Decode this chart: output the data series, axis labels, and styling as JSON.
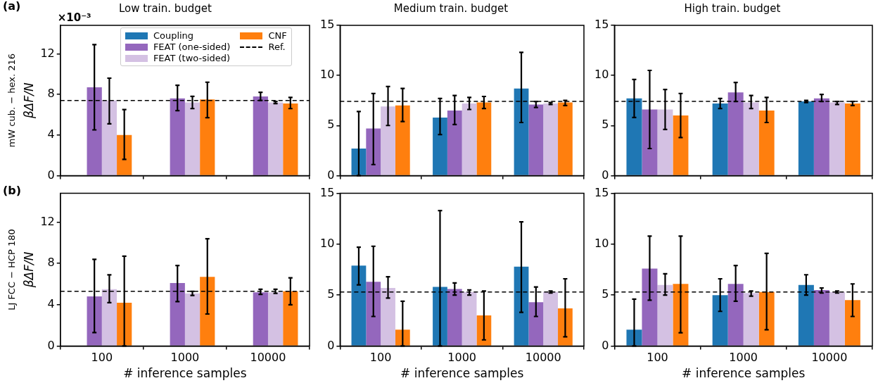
{
  "chart_data": [
    {
      "type": "bar",
      "title": "Low train. budget",
      "ylabel": "βΔF/N",
      "categories": [
        "100",
        "1000",
        "10000"
      ],
      "ylim": [
        0,
        14.8
      ],
      "yticks": [
        0,
        4,
        8,
        12
      ],
      "tick_labels": "y",
      "legend": "top",
      "annotations": [
        "(a)",
        "mW cub. − hex. 216",
        "×10⁻³"
      ],
      "ref_lines": [
        {
          "axis": "y",
          "value": 7.4,
          "label": "Ref.",
          "color": "#000000",
          "line_style": "dashed"
        }
      ],
      "series": [
        {
          "name": "Coupling",
          "color": "#1f77b4",
          "values": [
            null,
            null,
            null
          ],
          "errors": [
            null,
            null,
            null
          ]
        },
        {
          "name": "FEAT (one-sided)",
          "color": "#9467bd",
          "values": [
            8.7,
            7.6,
            7.8
          ],
          "errors": [
            [
              4.5,
              12.9
            ],
            [
              6.4,
              8.9
            ],
            [
              7.4,
              8.2
            ]
          ]
        },
        {
          "name": "FEAT (two-sided)",
          "color": "#d4c1e3",
          "values": [
            7.4,
            7.2,
            7.2
          ],
          "errors": [
            [
              5.1,
              9.6
            ],
            [
              6.6,
              7.8
            ],
            [
              7.1,
              7.3
            ]
          ]
        },
        {
          "name": "CNF",
          "color": "#ff7f0e",
          "values": [
            4.0,
            7.5,
            7.1
          ],
          "errors": [
            [
              1.6,
              6.5
            ],
            [
              5.7,
              9.2
            ],
            [
              6.6,
              7.7
            ]
          ]
        }
      ]
    },
    {
      "type": "bar",
      "title": "Medium train. budget",
      "categories": [
        "100",
        "1000",
        "10000"
      ],
      "ylim": [
        0,
        15
      ],
      "yticks": [
        0,
        5,
        10,
        15
      ],
      "tick_labels": "y",
      "ref_lines": [
        {
          "axis": "y",
          "value": 7.4,
          "color": "#000000",
          "line_style": "dashed"
        }
      ],
      "series": [
        {
          "color": "#1f77b4",
          "values": [
            2.7,
            5.8,
            8.7
          ],
          "errors": [
            [
              0,
              6.4
            ],
            [
              4.1,
              7.7
            ],
            [
              5.3,
              12.3
            ]
          ]
        },
        {
          "color": "#9467bd",
          "values": [
            4.7,
            6.5,
            7.1
          ],
          "errors": [
            [
              1.1,
              8.2
            ],
            [
              5.1,
              8.0
            ],
            [
              6.8,
              7.4
            ]
          ]
        },
        {
          "color": "#d4c1e3",
          "values": [
            6.9,
            7.2,
            7.2
          ],
          "errors": [
            [
              5.0,
              8.9
            ],
            [
              6.6,
              7.8
            ],
            [
              7.1,
              7.3
            ]
          ]
        },
        {
          "color": "#ff7f0e",
          "values": [
            7.0,
            7.3,
            7.3
          ],
          "errors": [
            [
              5.4,
              8.7
            ],
            [
              6.7,
              7.9
            ],
            [
              7.0,
              7.5
            ]
          ]
        }
      ]
    },
    {
      "type": "bar",
      "title": "High train. budget",
      "categories": [
        "100",
        "1000",
        "10000"
      ],
      "ylim": [
        0,
        15
      ],
      "yticks": [
        0,
        5,
        10,
        15
      ],
      "tick_labels": "y",
      "ref_lines": [
        {
          "axis": "y",
          "value": 7.4,
          "color": "#000000",
          "line_style": "dashed"
        }
      ],
      "series": [
        {
          "color": "#1f77b4",
          "values": [
            7.7,
            7.2,
            7.4
          ],
          "errors": [
            [
              5.8,
              9.6
            ],
            [
              6.7,
              7.7
            ],
            [
              7.3,
              7.5
            ]
          ]
        },
        {
          "color": "#9467bd",
          "values": [
            6.6,
            8.3,
            7.7
          ],
          "errors": [
            [
              2.7,
              10.5
            ],
            [
              7.4,
              9.3
            ],
            [
              7.4,
              8.1
            ]
          ]
        },
        {
          "color": "#d4c1e3",
          "values": [
            6.6,
            7.3,
            7.3
          ],
          "errors": [
            [
              4.6,
              8.6
            ],
            [
              6.7,
              8.0
            ],
            [
              7.1,
              7.4
            ]
          ]
        },
        {
          "color": "#ff7f0e",
          "values": [
            6.0,
            6.5,
            7.2
          ],
          "errors": [
            [
              3.8,
              8.2
            ],
            [
              5.3,
              7.8
            ],
            [
              7.0,
              7.4
            ]
          ]
        }
      ]
    },
    {
      "type": "bar",
      "xlabel": "# inference samples",
      "ylabel": "βΔF/N",
      "categories": [
        "100",
        "1000",
        "10000"
      ],
      "ylim": [
        0,
        14.8
      ],
      "yticks": [
        0,
        4,
        8,
        12
      ],
      "annotations": [
        "(b)",
        "LJ FCC − HCP 180"
      ],
      "ref_lines": [
        {
          "axis": "y",
          "value": 5.3,
          "color": "#000000",
          "line_style": "dashed"
        }
      ],
      "series": [
        {
          "color": "#1f77b4",
          "values": [
            null,
            null,
            null
          ],
          "errors": [
            null,
            null,
            null
          ]
        },
        {
          "color": "#9467bd",
          "values": [
            4.8,
            6.1,
            5.2
          ],
          "errors": [
            [
              1.3,
              8.4
            ],
            [
              4.3,
              7.8
            ],
            [
              5.0,
              5.5
            ]
          ]
        },
        {
          "color": "#d4c1e3",
          "values": [
            5.5,
            5.1,
            5.2
          ],
          "errors": [
            [
              4.2,
              6.9
            ],
            [
              4.9,
              5.3
            ],
            [
              5.1,
              5.5
            ]
          ]
        },
        {
          "color": "#ff7f0e",
          "values": [
            4.2,
            6.7,
            5.3
          ],
          "errors": [
            [
              0,
              8.7
            ],
            [
              3.1,
              10.4
            ],
            [
              4.0,
              6.6
            ]
          ]
        }
      ]
    },
    {
      "type": "bar",
      "xlabel": "# inference samples",
      "categories": [
        "100",
        "1000",
        "10000"
      ],
      "ylim": [
        0,
        15
      ],
      "yticks": [
        0,
        5,
        10,
        15
      ],
      "ref_lines": [
        {
          "axis": "y",
          "value": 5.3,
          "color": "#000000",
          "line_style": "dashed"
        }
      ],
      "series": [
        {
          "color": "#1f77b4",
          "values": [
            7.9,
            5.8,
            7.8
          ],
          "errors": [
            [
              6.0,
              9.7
            ],
            [
              0,
              13.3
            ],
            [
              3.3,
              12.2
            ]
          ]
        },
        {
          "color": "#9467bd",
          "values": [
            6.3,
            5.6,
            4.3
          ],
          "errors": [
            [
              2.9,
              9.8
            ],
            [
              5.0,
              6.2
            ],
            [
              2.9,
              5.8
            ]
          ]
        },
        {
          "color": "#d4c1e3",
          "values": [
            5.7,
            5.3,
            5.3
          ],
          "errors": [
            [
              4.7,
              6.8
            ],
            [
              5.0,
              5.5
            ],
            [
              5.2,
              5.4
            ]
          ]
        },
        {
          "color": "#ff7f0e",
          "values": [
            1.6,
            3.0,
            3.7
          ],
          "errors": [
            [
              0,
              4.4
            ],
            [
              0.6,
              5.4
            ],
            [
              0.9,
              6.6
            ]
          ]
        }
      ]
    },
    {
      "type": "bar",
      "xlabel": "# inference samples",
      "categories": [
        "100",
        "1000",
        "10000"
      ],
      "ylim": [
        0,
        15
      ],
      "yticks": [
        0,
        5,
        10,
        15
      ],
      "ref_lines": [
        {
          "axis": "y",
          "value": 5.3,
          "color": "#000000",
          "line_style": "dashed"
        }
      ],
      "series": [
        {
          "color": "#1f77b4",
          "values": [
            1.6,
            5.0,
            6.0
          ],
          "errors": [
            [
              0,
              4.6
            ],
            [
              3.4,
              6.6
            ],
            [
              5.0,
              7.0
            ]
          ]
        },
        {
          "color": "#9467bd",
          "values": [
            7.6,
            6.1,
            5.5
          ],
          "errors": [
            [
              4.5,
              10.8
            ],
            [
              4.4,
              7.9
            ],
            [
              5.2,
              5.7
            ]
          ]
        },
        {
          "color": "#d4c1e3",
          "values": [
            6.0,
            5.2,
            5.3
          ],
          "errors": [
            [
              5.0,
              7.1
            ],
            [
              4.9,
              5.4
            ],
            [
              5.2,
              5.4
            ]
          ]
        },
        {
          "color": "#ff7f0e",
          "values": [
            6.1,
            5.3,
            4.5
          ],
          "errors": [
            [
              1.3,
              10.8
            ],
            [
              1.6,
              9.1
            ],
            [
              2.9,
              6.1
            ]
          ]
        }
      ]
    }
  ]
}
